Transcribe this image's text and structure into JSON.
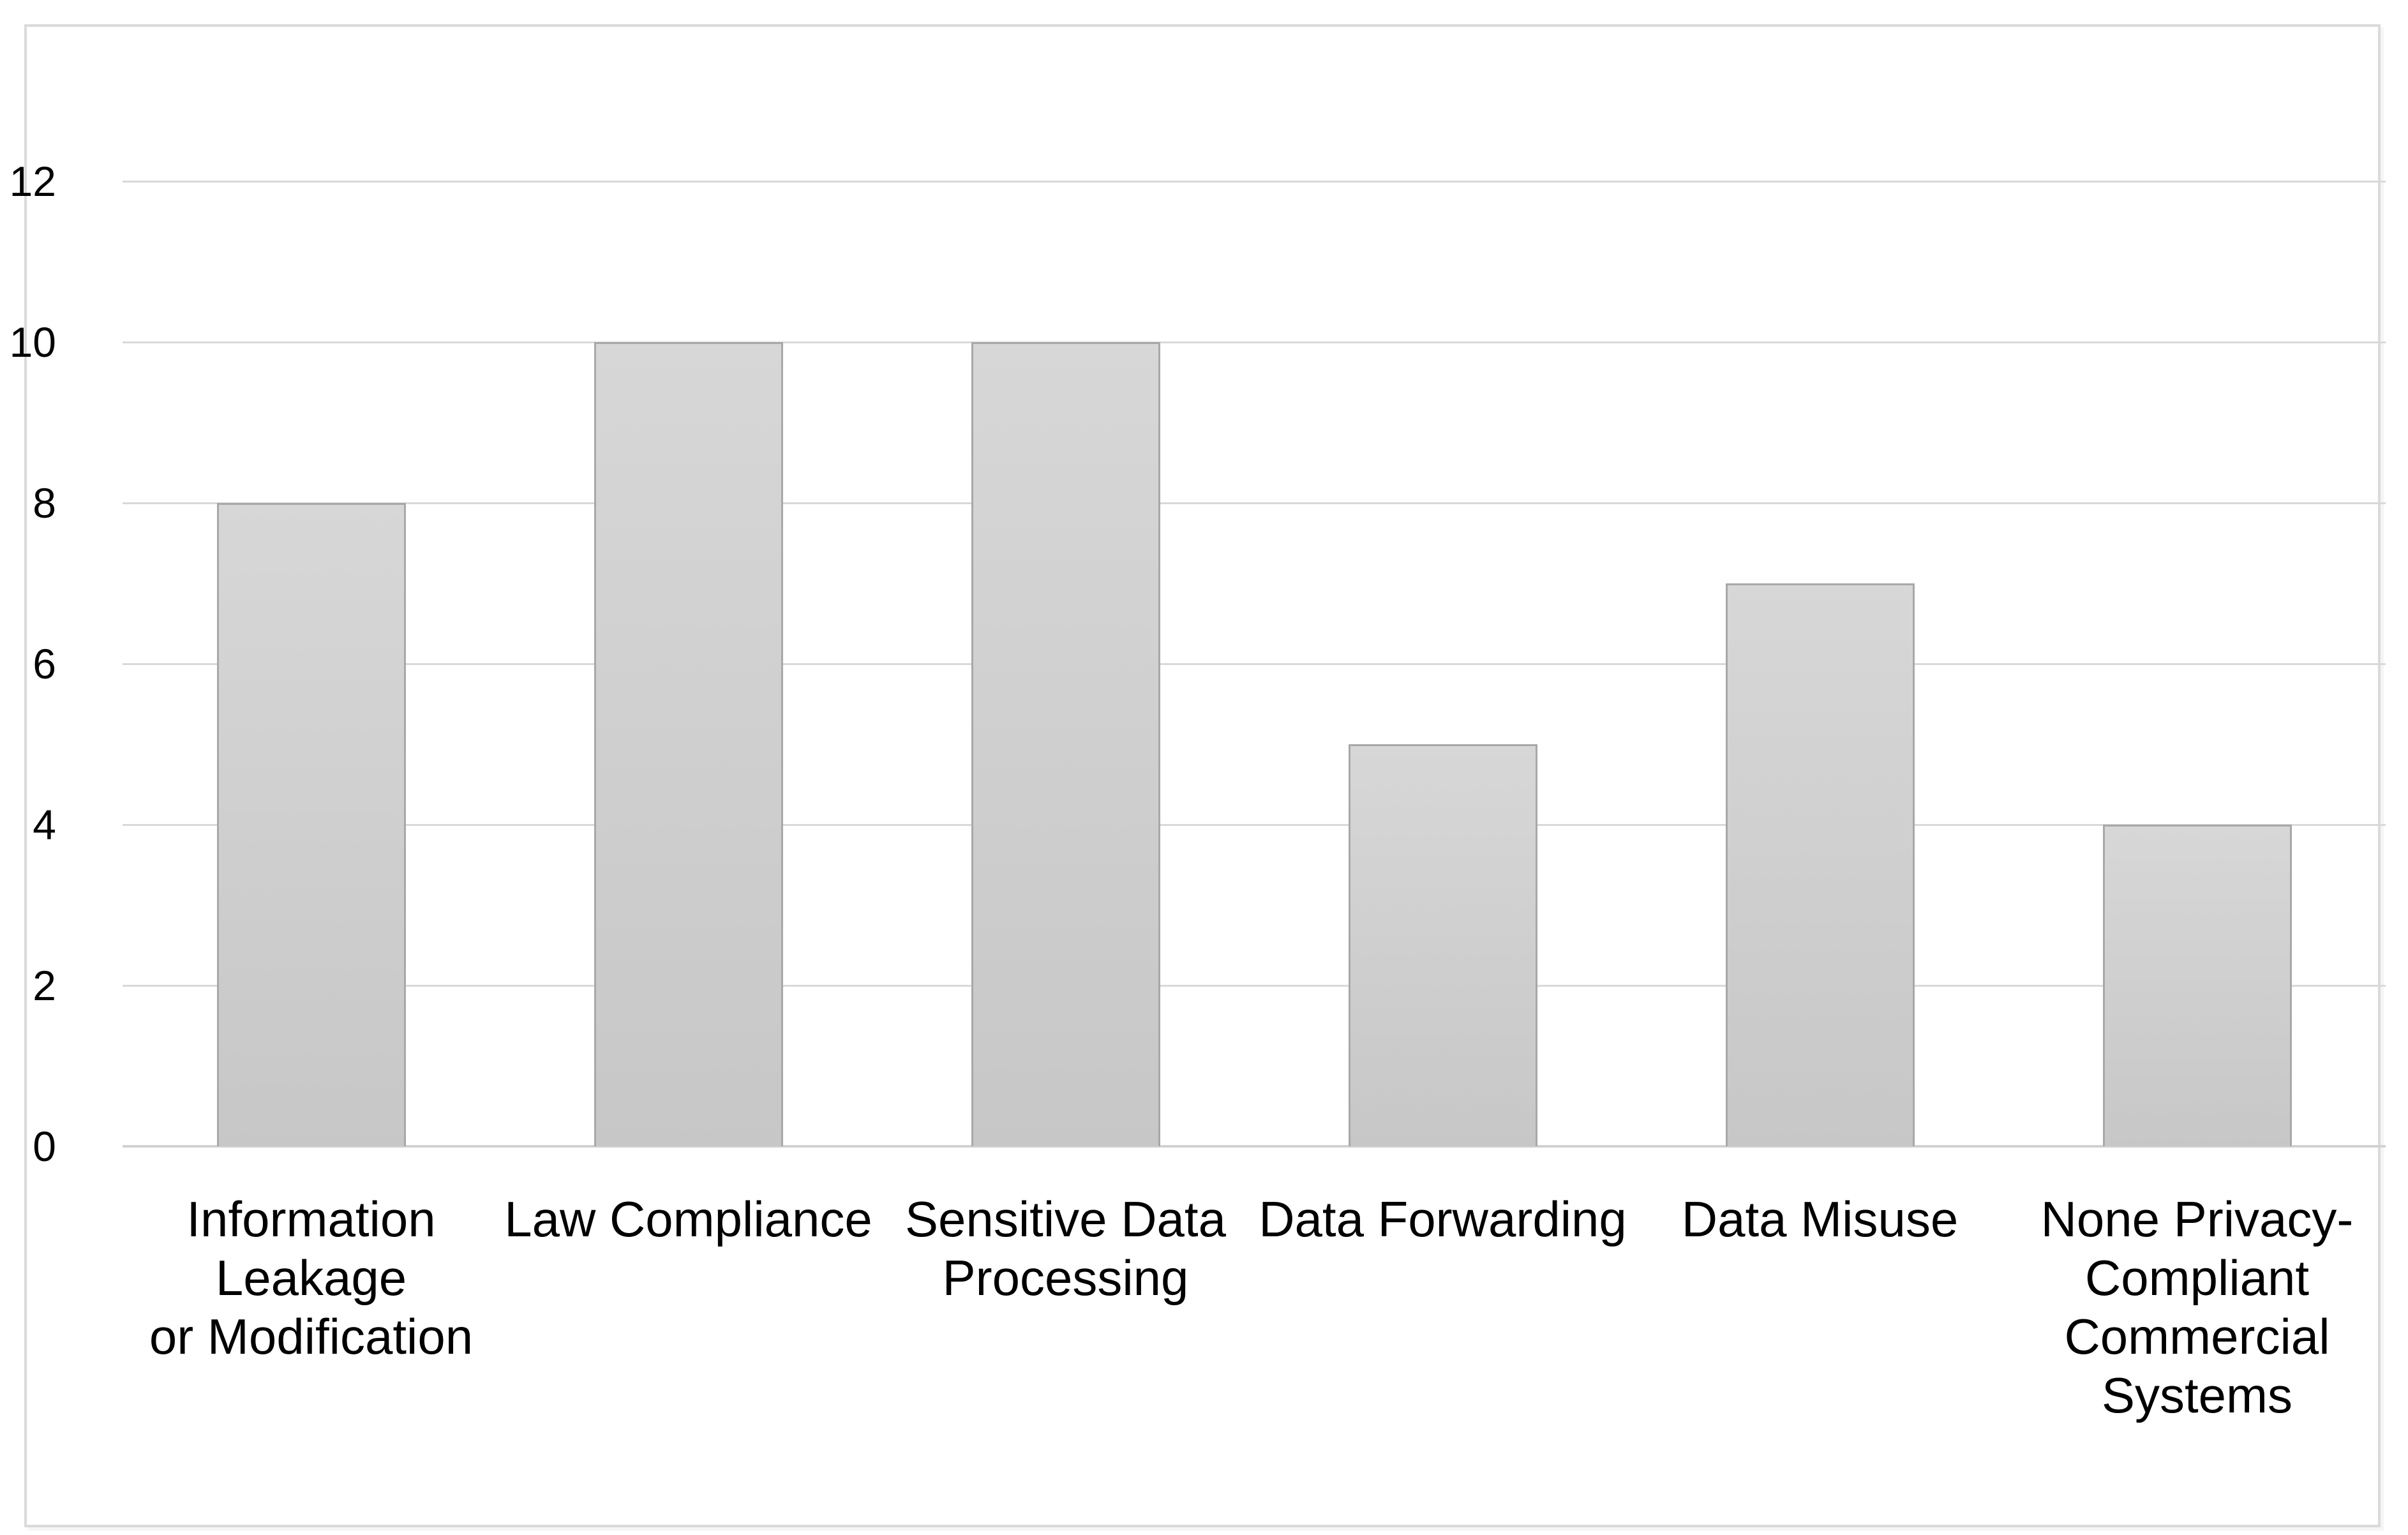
{
  "chart_data": {
    "type": "bar",
    "title": "",
    "xlabel": "",
    "ylabel": "",
    "categories": [
      "Information Leakage or Modification",
      "Law Compliance",
      "Sensitive Data Processing",
      "Data Forwarding",
      "Data Misuse",
      "None Privacy-Compliant Commercial Systems"
    ],
    "category_display_lines": [
      "Information Leakage\nor Modification",
      "Law Compliance",
      "Sensitive Data\nProcessing",
      "Data Forwarding",
      "Data Misuse",
      "None Privacy-\nCompliant\nCommercial\nSystems"
    ],
    "values": [
      8,
      10,
      10,
      5,
      7,
      4
    ],
    "ylim": [
      0,
      12
    ],
    "yticks": [
      0,
      2,
      4,
      6,
      8,
      10,
      12
    ],
    "grid": true,
    "legend": false,
    "colors": {
      "bar_fill_top": "#d7d7d7",
      "bar_fill_bottom": "#c7c7c7",
      "bar_border": "#a8a8a8",
      "gridline": "#d9d9d9",
      "axis_line": "#d2d2d2",
      "text": "#000000",
      "frame": "#dadada",
      "background": "#ffffff"
    }
  }
}
